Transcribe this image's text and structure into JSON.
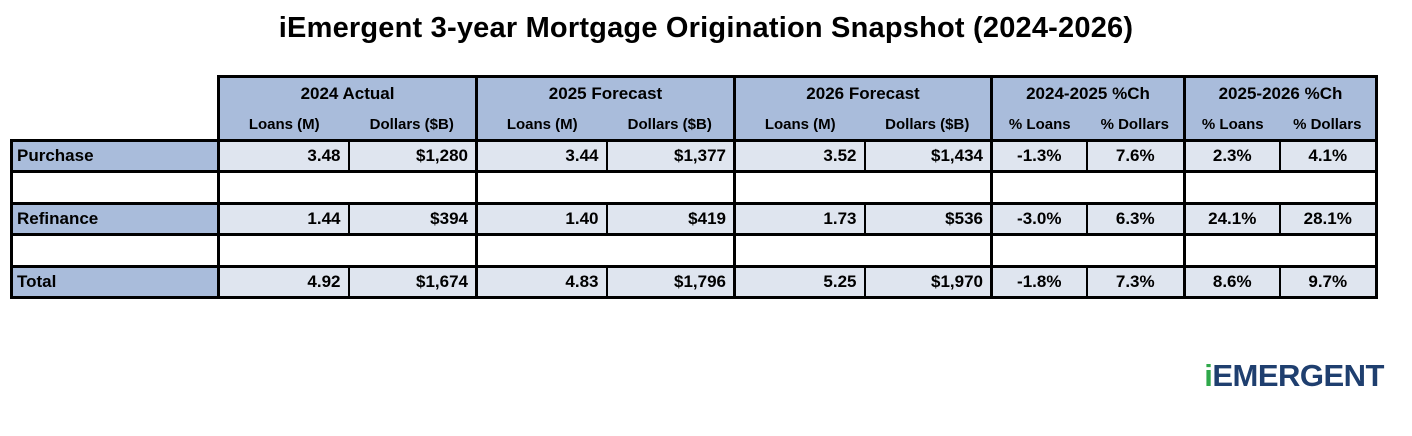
{
  "title": "iEmergent 3-year Mortgage Origination Snapshot (2024-2026)",
  "groups": [
    "2024 Actual",
    "2025 Forecast",
    "2026 Forecast",
    "2024-2025 %Ch",
    "2025-2026 %Ch"
  ],
  "subheaders": [
    "Loans (M)",
    "Dollars ($B)",
    "Loans (M)",
    "Dollars ($B)",
    "Loans (M)",
    "Dollars ($B)",
    "% Loans",
    "% Dollars",
    "% Loans",
    "% Dollars"
  ],
  "rows": [
    {
      "label": "Purchase",
      "values": [
        "3.48",
        "$1,280",
        "3.44",
        "$1,377",
        "3.52",
        "$1,434",
        "-1.3%",
        "7.6%",
        "2.3%",
        "4.1%"
      ]
    },
    {
      "label": "Refinance",
      "values": [
        "1.44",
        "$394",
        "1.40",
        "$419",
        "1.73",
        "$536",
        "-3.0%",
        "6.3%",
        "24.1%",
        "28.1%"
      ]
    },
    {
      "label": "Total",
      "values": [
        "4.92",
        "$1,674",
        "4.83",
        "$1,796",
        "5.25",
        "$1,970",
        "-1.8%",
        "7.3%",
        "8.6%",
        "9.7%"
      ]
    }
  ],
  "logo": {
    "prefix": "i",
    "main": "EMERGENT"
  },
  "colors": {
    "header_blue": "#a9bcdb",
    "cell_light": "#dfe5ef",
    "logo_navy": "#1f3f6f",
    "logo_green": "#2fa84a"
  }
}
